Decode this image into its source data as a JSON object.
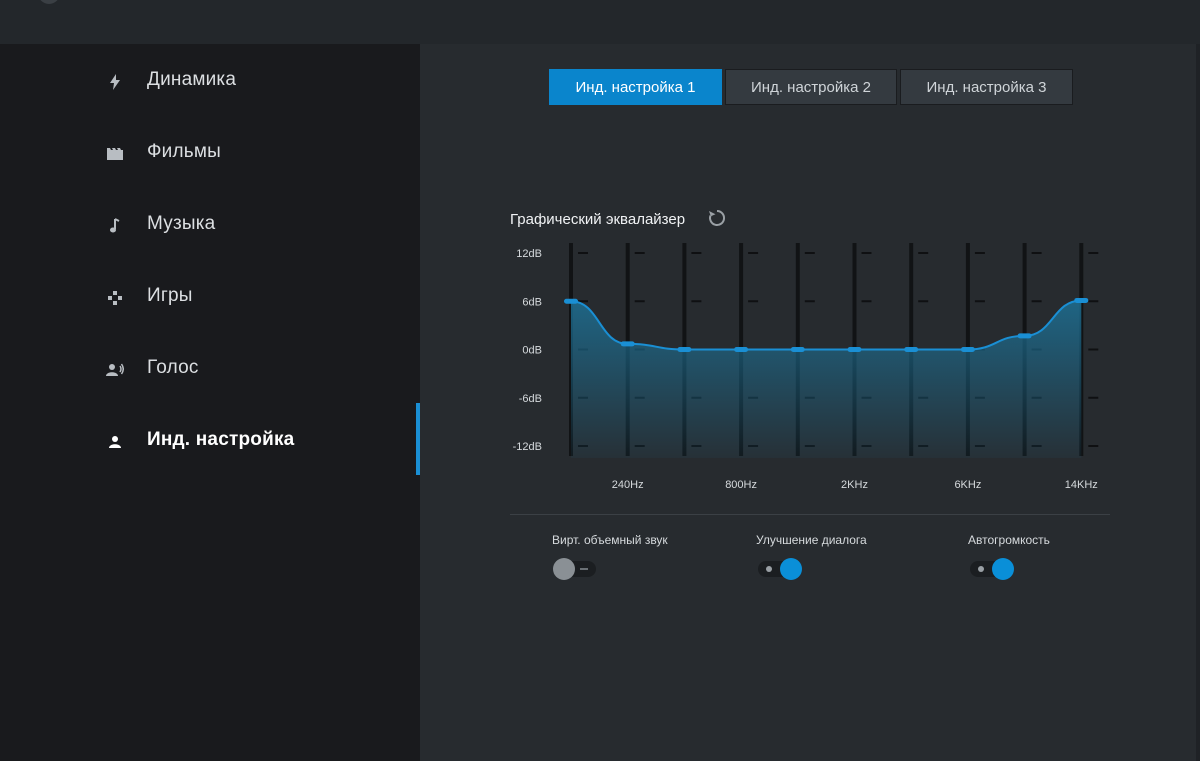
{
  "nav": {
    "items": [
      {
        "label": "Динамика",
        "icon": "lightning-icon"
      },
      {
        "label": "Фильмы",
        "icon": "film-icon"
      },
      {
        "label": "Музыка",
        "icon": "music-note-icon"
      },
      {
        "label": "Игры",
        "icon": "gamepad-icon"
      },
      {
        "label": "Голос",
        "icon": "voice-icon"
      },
      {
        "label": "Инд. настройка",
        "icon": "person-icon",
        "active": true
      }
    ]
  },
  "tabs": [
    {
      "label": "Инд. настройка 1",
      "active": true
    },
    {
      "label": "Инд. настройка 2",
      "active": false
    },
    {
      "label": "Инд. настройка 3",
      "active": false
    }
  ],
  "equalizer": {
    "title": "Графический эквалайзер",
    "reset_icon": "reset-icon",
    "y_ticks": [
      "12dB",
      "6dB",
      "0dB",
      "-6dB",
      "-12dB"
    ],
    "y_range": [
      -12,
      12
    ],
    "band_labels": [
      "",
      "240Hz",
      "",
      "800Hz",
      "",
      "2KHz",
      "",
      "6KHz",
      "",
      "14KHz"
    ],
    "band_gains_db": [
      6,
      0.7,
      0,
      0,
      0,
      0,
      0,
      0,
      1.7,
      6.1
    ]
  },
  "toggles": [
    {
      "label": "Вирт. объемный звук",
      "on": false
    },
    {
      "label": "Улучшение диалога",
      "on": true
    },
    {
      "label": "Автогромкость",
      "on": true
    }
  ],
  "colors": {
    "accent": "#0a85cc",
    "curve": "#1a8fd4"
  }
}
